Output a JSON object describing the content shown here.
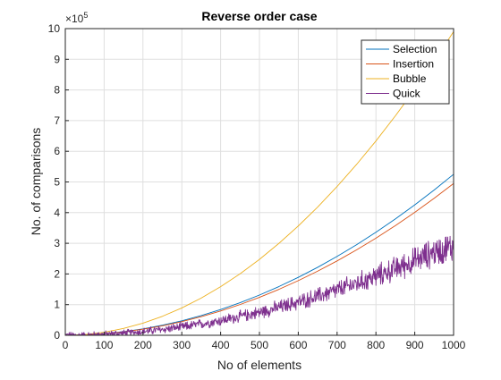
{
  "chart_data": {
    "type": "line",
    "title": "Reverse order case",
    "xlabel": "No of elements",
    "ylabel": "No. of comparisons",
    "xlim": [
      0,
      1000
    ],
    "ylim": [
      0,
      10
    ],
    "y_exponent_label": "×10",
    "y_exponent_power": "5",
    "xticks": [
      "0",
      "100",
      "200",
      "300",
      "400",
      "500",
      "600",
      "700",
      "800",
      "900",
      "1000"
    ],
    "yticks": [
      "0",
      "1",
      "2",
      "3",
      "4",
      "5",
      "6",
      "7",
      "8",
      "9",
      "10"
    ],
    "grid": true,
    "legend_position": "top-right",
    "x": [
      0,
      50,
      100,
      150,
      200,
      250,
      300,
      350,
      400,
      450,
      500,
      550,
      600,
      650,
      700,
      750,
      800,
      850,
      900,
      950,
      1000
    ],
    "series": [
      {
        "name": "Selection",
        "color": "#0072BD",
        "values": [
          0,
          0.013,
          0.052,
          0.118,
          0.21,
          0.328,
          0.472,
          0.643,
          0.84,
          1.063,
          1.312,
          1.588,
          1.89,
          2.218,
          2.573,
          2.953,
          3.36,
          3.793,
          4.253,
          4.738,
          5.25
        ]
      },
      {
        "name": "Insertion",
        "color": "#D95319",
        "values": [
          0,
          0.012,
          0.049,
          0.111,
          0.198,
          0.309,
          0.445,
          0.606,
          0.792,
          1.002,
          1.237,
          1.497,
          1.782,
          2.091,
          2.425,
          2.784,
          3.168,
          3.576,
          4.009,
          4.467,
          4.95
        ]
      },
      {
        "name": "Bubble",
        "color": "#EDB120",
        "values": [
          0,
          0.025,
          0.099,
          0.223,
          0.396,
          0.619,
          0.891,
          1.213,
          1.584,
          2.005,
          2.475,
          2.995,
          3.564,
          4.183,
          4.851,
          5.569,
          6.336,
          7.153,
          8.019,
          8.935,
          9.9
        ]
      },
      {
        "name": "Quick",
        "color": "#7E2F8E",
        "values": [
          0,
          0.007,
          0.03,
          0.067,
          0.12,
          0.19,
          0.27,
          0.37,
          0.48,
          0.61,
          0.75,
          0.91,
          1.08,
          1.27,
          1.47,
          1.69,
          1.92,
          2.17,
          2.43,
          2.71,
          2.9
        ],
        "noise": "high-frequency fluctuation, amplitude growing with n (about ±0.4 near n=1000)"
      }
    ]
  }
}
